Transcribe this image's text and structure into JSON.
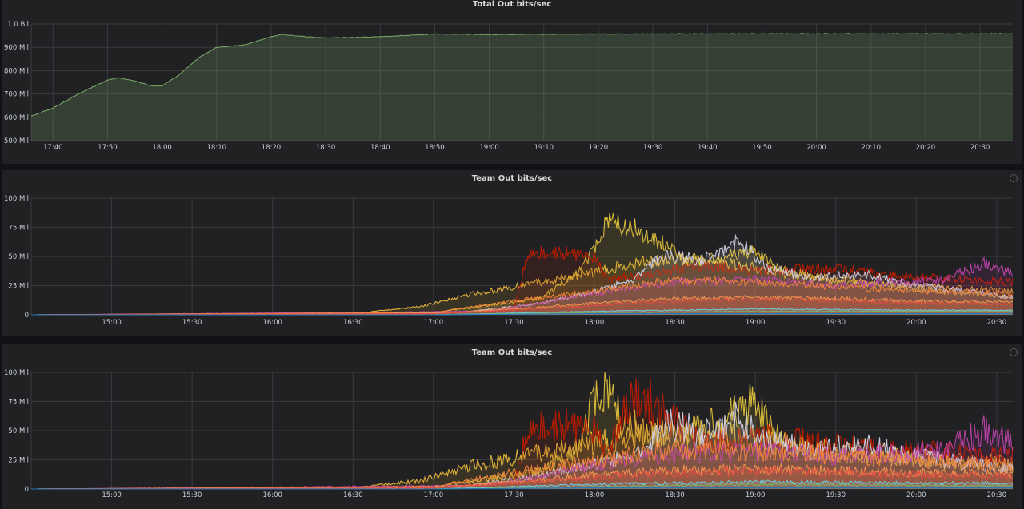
{
  "panels": [
    {
      "title": "Total Out bits/sec"
    },
    {
      "title": "Team Out bits/sec"
    },
    {
      "title": "Team Out bits/sec"
    }
  ],
  "chart_data": [
    {
      "type": "area",
      "title": "Total Out bits/sec",
      "x_ticks": [
        "17:40",
        "17:50",
        "18:00",
        "18:10",
        "18:20",
        "18:30",
        "18:40",
        "18:50",
        "19:00",
        "19:10",
        "19:20",
        "19:30",
        "19:40",
        "19:50",
        "20:00",
        "20:10",
        "20:20",
        "20:30"
      ],
      "y_ticks": [
        "500 Mil",
        "600 Mil",
        "700 Mil",
        "800 Mil",
        "900 Mil",
        "1.0 Bil"
      ],
      "ylim": [
        500,
        1000
      ],
      "y_unit": "Mil",
      "color": "#7eb26d",
      "series": [
        {
          "x": [
            "17:36",
            "17:40",
            "17:45",
            "17:50",
            "17:52",
            "17:55",
            "17:58",
            "18:00",
            "18:03",
            "18:07",
            "18:10",
            "18:15",
            "18:20",
            "18:22",
            "18:25",
            "18:30",
            "18:40",
            "18:50",
            "19:00",
            "19:20",
            "19:40",
            "20:00",
            "20:20",
            "20:36"
          ],
          "values": [
            605,
            640,
            705,
            760,
            770,
            755,
            735,
            735,
            780,
            860,
            900,
            910,
            945,
            955,
            948,
            940,
            945,
            957,
            955,
            957,
            958,
            958,
            958,
            958
          ]
        }
      ]
    },
    {
      "type": "line",
      "title": "Team Out bits/sec",
      "x_ticks": [
        "15:00",
        "15:30",
        "16:00",
        "16:30",
        "17:00",
        "17:30",
        "18:00",
        "18:30",
        "19:00",
        "19:30",
        "20:00",
        "20:30"
      ],
      "y_ticks": [
        "0",
        "25 Mil",
        "50 Mil",
        "75 Mil",
        "100 Mil"
      ],
      "ylim": [
        0,
        100
      ],
      "y_unit": "Mil",
      "series": [
        {
          "color": "#eab839",
          "x": [
            "14:30",
            "16:30",
            "16:55",
            "17:15",
            "17:30",
            "17:45",
            "18:00",
            "18:15",
            "18:30",
            "18:45",
            "19:00",
            "19:15",
            "19:30",
            "19:45",
            "20:00",
            "20:15",
            "20:30",
            "20:36"
          ],
          "values": [
            0,
            1,
            7,
            18,
            24,
            30,
            37,
            44,
            48,
            46,
            40,
            34,
            30,
            27,
            25,
            23,
            21,
            20
          ]
        },
        {
          "color": "#e0c23a",
          "x": [
            "14:30",
            "17:00",
            "17:40",
            "17:55",
            "18:05",
            "18:15",
            "18:25",
            "18:35",
            "18:45",
            "19:00",
            "19:10",
            "19:30",
            "20:00",
            "20:36"
          ],
          "values": [
            0,
            2,
            14,
            38,
            80,
            75,
            62,
            45,
            48,
            55,
            38,
            30,
            22,
            15
          ]
        },
        {
          "color": "#bf1b00",
          "x": [
            "14:30",
            "17:00",
            "17:30",
            "17:35",
            "17:45",
            "18:00",
            "18:05",
            "18:20",
            "18:40",
            "19:00",
            "19:30",
            "20:00",
            "20:36"
          ],
          "values": [
            0,
            1,
            5,
            52,
            54,
            50,
            30,
            35,
            42,
            38,
            40,
            32,
            28
          ]
        },
        {
          "color": "#cfcfe0",
          "x": [
            "14:30",
            "17:10",
            "17:40",
            "18:00",
            "18:15",
            "18:25",
            "18:40",
            "18:55",
            "19:05",
            "19:20",
            "19:40",
            "20:00",
            "20:20",
            "20:36"
          ],
          "values": [
            0,
            2,
            10,
            20,
            30,
            50,
            48,
            63,
            40,
            32,
            35,
            25,
            20,
            15
          ]
        },
        {
          "color": "#ba43a9",
          "x": [
            "14:30",
            "17:20",
            "18:00",
            "18:30",
            "19:00",
            "19:30",
            "19:50",
            "20:10",
            "20:25",
            "20:36"
          ],
          "values": [
            0,
            3,
            18,
            28,
            30,
            25,
            28,
            30,
            44,
            35
          ]
        },
        {
          "color": "#ef843c",
          "x": [
            "14:30",
            "17:00",
            "17:30",
            "18:00",
            "18:30",
            "19:00",
            "19:30",
            "20:00",
            "20:36"
          ],
          "values": [
            0,
            2,
            12,
            20,
            30,
            28,
            24,
            20,
            18
          ]
        },
        {
          "color": "#f9934e",
          "x": [
            "14:30",
            "17:00",
            "17:30",
            "18:00",
            "18:30",
            "19:00",
            "19:30",
            "20:00",
            "20:36"
          ],
          "values": [
            0,
            1,
            5,
            10,
            14,
            15,
            14,
            12,
            11
          ]
        },
        {
          "color": "#e24d42",
          "x": [
            "14:30",
            "17:00",
            "17:30",
            "18:00",
            "18:30",
            "19:00",
            "19:30",
            "20:00",
            "20:36"
          ],
          "values": [
            0,
            1,
            4,
            8,
            12,
            13,
            12,
            10,
            9
          ]
        },
        {
          "color": "#6ed0e0",
          "x": [
            "14:30",
            "17:00",
            "18:00",
            "19:00",
            "20:00",
            "20:36"
          ],
          "values": [
            0,
            0,
            3,
            5,
            4,
            4
          ]
        },
        {
          "color": "#7eb26d",
          "x": [
            "14:30",
            "17:00",
            "18:00",
            "19:00",
            "20:00",
            "20:36"
          ],
          "values": [
            0,
            0,
            2,
            3,
            3,
            3
          ]
        },
        {
          "color": "#1f78c1",
          "x": [
            "14:30",
            "17:00",
            "18:00",
            "19:00",
            "20:00",
            "20:36"
          ],
          "values": [
            0,
            0,
            1,
            1,
            1,
            1
          ]
        }
      ]
    },
    {
      "type": "line",
      "title": "Team Out bits/sec",
      "x_ticks": [
        "15:00",
        "15:30",
        "16:00",
        "16:30",
        "17:00",
        "17:30",
        "18:00",
        "18:30",
        "19:00",
        "19:30",
        "20:00",
        "20:30"
      ],
      "y_ticks": [
        "0",
        "25 Mil",
        "50 Mil",
        "75 Mil",
        "100 Mil"
      ],
      "ylim": [
        0,
        100
      ],
      "y_unit": "Mil",
      "series": [
        {
          "color": "#eab839",
          "x": [
            "14:30",
            "16:30",
            "16:55",
            "17:15",
            "17:30",
            "17:45",
            "18:00",
            "18:15",
            "18:30",
            "18:45",
            "19:00",
            "19:15",
            "19:30",
            "19:45",
            "20:00",
            "20:15",
            "20:30",
            "20:36"
          ],
          "values": [
            0,
            1,
            7,
            20,
            27,
            33,
            40,
            47,
            50,
            48,
            42,
            36,
            32,
            29,
            27,
            25,
            23,
            22
          ]
        },
        {
          "color": "#e0c23a",
          "x": [
            "14:30",
            "17:00",
            "17:40",
            "17:55",
            "18:00",
            "18:05",
            "18:10",
            "18:20",
            "18:30",
            "18:45",
            "19:00",
            "19:10",
            "19:30",
            "20:00",
            "20:36"
          ],
          "values": [
            0,
            2,
            15,
            35,
            85,
            82,
            60,
            50,
            45,
            55,
            75,
            40,
            30,
            24,
            18
          ]
        },
        {
          "color": "#bf1b00",
          "x": [
            "14:30",
            "17:00",
            "17:30",
            "17:35",
            "17:45",
            "18:00",
            "18:05",
            "18:15",
            "18:40",
            "19:00",
            "19:30",
            "20:00",
            "20:36"
          ],
          "values": [
            0,
            1,
            6,
            50,
            56,
            52,
            30,
            85,
            40,
            45,
            38,
            33,
            28
          ]
        },
        {
          "color": "#cfcfe0",
          "x": [
            "14:30",
            "17:10",
            "17:40",
            "18:00",
            "18:20",
            "18:25",
            "18:40",
            "18:55",
            "19:05",
            "19:20",
            "19:40",
            "20:00",
            "20:20",
            "20:36"
          ],
          "values": [
            0,
            2,
            12,
            22,
            30,
            55,
            50,
            60,
            42,
            34,
            38,
            28,
            22,
            18
          ]
        },
        {
          "color": "#ba43a9",
          "x": [
            "14:30",
            "17:20",
            "18:00",
            "18:30",
            "19:00",
            "19:30",
            "19:50",
            "20:10",
            "20:25",
            "20:36"
          ],
          "values": [
            0,
            3,
            20,
            30,
            32,
            28,
            30,
            34,
            50,
            38
          ]
        },
        {
          "color": "#ef843c",
          "x": [
            "14:30",
            "17:00",
            "17:30",
            "18:00",
            "18:30",
            "19:00",
            "19:30",
            "20:00",
            "20:36"
          ],
          "values": [
            0,
            2,
            14,
            24,
            34,
            32,
            28,
            24,
            20
          ]
        },
        {
          "color": "#f9934e",
          "x": [
            "14:30",
            "17:00",
            "17:30",
            "18:00",
            "18:30",
            "19:00",
            "19:30",
            "20:00",
            "20:36"
          ],
          "values": [
            0,
            1,
            6,
            12,
            16,
            17,
            16,
            14,
            13
          ]
        },
        {
          "color": "#e24d42",
          "x": [
            "14:30",
            "17:00",
            "17:30",
            "18:00",
            "18:30",
            "19:00",
            "19:30",
            "20:00",
            "20:36"
          ],
          "values": [
            0,
            1,
            5,
            10,
            14,
            15,
            14,
            12,
            11
          ]
        },
        {
          "color": "#6ed0e0",
          "x": [
            "14:30",
            "17:00",
            "18:00",
            "19:00",
            "20:00",
            "20:36"
          ],
          "values": [
            0,
            0,
            4,
            6,
            5,
            5
          ]
        },
        {
          "color": "#7eb26d",
          "x": [
            "14:30",
            "17:00",
            "18:00",
            "19:00",
            "20:00",
            "20:36"
          ],
          "values": [
            0,
            0,
            2,
            4,
            3,
            3
          ]
        },
        {
          "color": "#1f78c1",
          "x": [
            "14:30",
            "17:00",
            "18:00",
            "19:00",
            "20:00",
            "20:36"
          ],
          "values": [
            0,
            0,
            1,
            1,
            1,
            1
          ]
        }
      ]
    }
  ]
}
